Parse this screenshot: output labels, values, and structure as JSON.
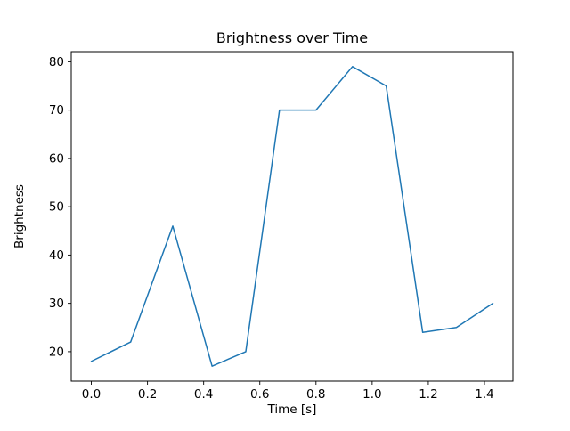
{
  "chart_data": {
    "type": "line",
    "title": "Brightness over Time",
    "xlabel": "Time [s]",
    "ylabel": "Brightness",
    "x": [
      0.0,
      0.14,
      0.29,
      0.43,
      0.55,
      0.67,
      0.8,
      0.93,
      1.05,
      1.18,
      1.3,
      1.43
    ],
    "y": [
      18,
      22,
      46,
      17,
      20,
      70,
      70,
      79,
      75,
      24,
      25,
      30
    ],
    "xlim": [
      -0.0715,
      1.5015
    ],
    "ylim": [
      13.9,
      82.1
    ],
    "xticks": [
      0.0,
      0.2,
      0.4,
      0.6,
      0.8,
      1.0,
      1.2,
      1.4
    ],
    "yticks": [
      20,
      30,
      40,
      50,
      60,
      70,
      80
    ],
    "line_color": "#1f77b4",
    "spine_color": "#000000",
    "grid": false,
    "legend": null
  }
}
